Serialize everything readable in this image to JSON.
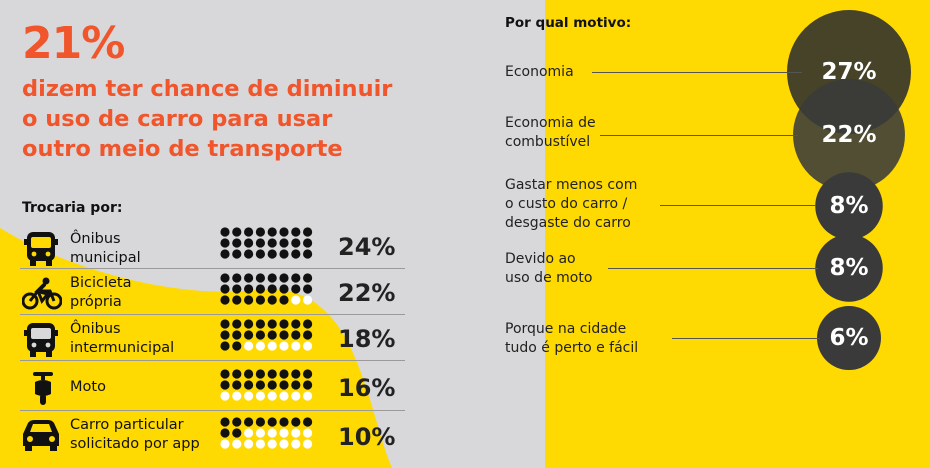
{
  "colors": {
    "accent": "#F0552B",
    "yellow": "#FFD902",
    "gray": "#D8D8DA",
    "dark": "#111111",
    "bubble": "#3A3A3A"
  },
  "headline": {
    "percent": "21%",
    "lines": [
      "dizem ter chance de diminuir",
      "o uso de carro para usar",
      "outro meio de transporte"
    ]
  },
  "left": {
    "title": "Trocaria por:",
    "rows": [
      {
        "icon": "bus-icon",
        "label_lines": [
          "Ônibus",
          "municipal"
        ],
        "value_label": "24%"
      },
      {
        "icon": "bicycle-icon",
        "label_lines": [
          "Bicicleta",
          "própria"
        ],
        "value_label": "22%"
      },
      {
        "icon": "bus-icon",
        "label_lines": [
          "Ônibus",
          "intermunicipal"
        ],
        "value_label": "18%"
      },
      {
        "icon": "motorcycle-icon",
        "label_lines": [
          "Moto"
        ],
        "value_label": "16%"
      },
      {
        "icon": "car-icon",
        "label_lines": [
          "Carro particular",
          "solicitado por app"
        ],
        "value_label": "10%"
      }
    ]
  },
  "right": {
    "title": "Por qual motivo:",
    "reasons": [
      {
        "label_lines": [
          "Economia"
        ],
        "value_label": "27%"
      },
      {
        "label_lines": [
          "Economia de",
          "combustível"
        ],
        "value_label": "22%"
      },
      {
        "label_lines": [
          "Gastar menos com",
          "o custo do carro /",
          "desgaste do carro"
        ],
        "value_label": "8%"
      },
      {
        "label_lines": [
          "Devido ao",
          "uso de moto"
        ],
        "value_label": "8%"
      },
      {
        "label_lines": [
          "Porque na cidade",
          "tudo é perto e fácil"
        ],
        "value_label": "6%"
      }
    ]
  },
  "chart_data": [
    {
      "type": "bar",
      "title": "Trocaria por:",
      "categories": [
        "Ônibus municipal",
        "Bicicleta própria",
        "Ônibus intermunicipal",
        "Moto",
        "Carro particular solicitado por app"
      ],
      "values": [
        24,
        22,
        18,
        16,
        10
      ],
      "unit": "%",
      "dots_total": 24,
      "dots_filled": [
        24,
        22,
        18,
        16,
        10
      ]
    },
    {
      "type": "bubble",
      "title": "Por qual motivo:",
      "categories": [
        "Economia",
        "Economia de combustível",
        "Gastar menos com o custo do carro / desgaste do carro",
        "Devido ao uso de moto",
        "Porque na cidade tudo é perto e fácil"
      ],
      "values": [
        27,
        22,
        8,
        8,
        6
      ],
      "unit": "%"
    }
  ]
}
